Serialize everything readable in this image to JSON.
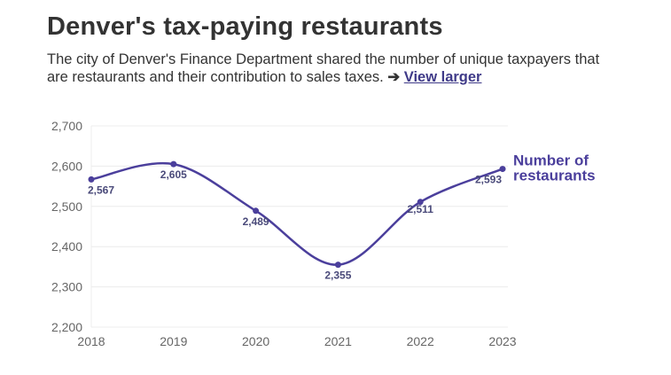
{
  "header": {
    "title": "Denver's tax-paying restaurants",
    "subtitle": "The city of Denver's Finance Department shared the number of unique taxpayers that are restaurants and their contribution to sales taxes.",
    "arrow": "➔",
    "link_label": "View larger"
  },
  "colors": {
    "line": "#4b3f9c",
    "grid": "#ececec",
    "text": "#333333"
  },
  "chart_data": {
    "type": "line",
    "title": "Denver's tax-paying restaurants",
    "xlabel": "",
    "ylabel": "",
    "categories": [
      "2018",
      "2019",
      "2020",
      "2021",
      "2022",
      "2023"
    ],
    "series": [
      {
        "name": "Number of restaurants",
        "label_lines": [
          "Number of",
          "restaurants"
        ],
        "values": [
          2567,
          2605,
          2489,
          2355,
          2511,
          2593
        ],
        "value_labels": [
          "2,567",
          "2,605",
          "2,489",
          "2,355",
          "2,511",
          "2,593"
        ]
      }
    ],
    "ylim": [
      2200,
      2700
    ],
    "yticks": [
      2200,
      2300,
      2400,
      2500,
      2600,
      2700
    ],
    "ytick_labels": [
      "2,200",
      "2,300",
      "2,400",
      "2,500",
      "2,600",
      "2,700"
    ],
    "grid": true,
    "legend": "inline-right"
  }
}
